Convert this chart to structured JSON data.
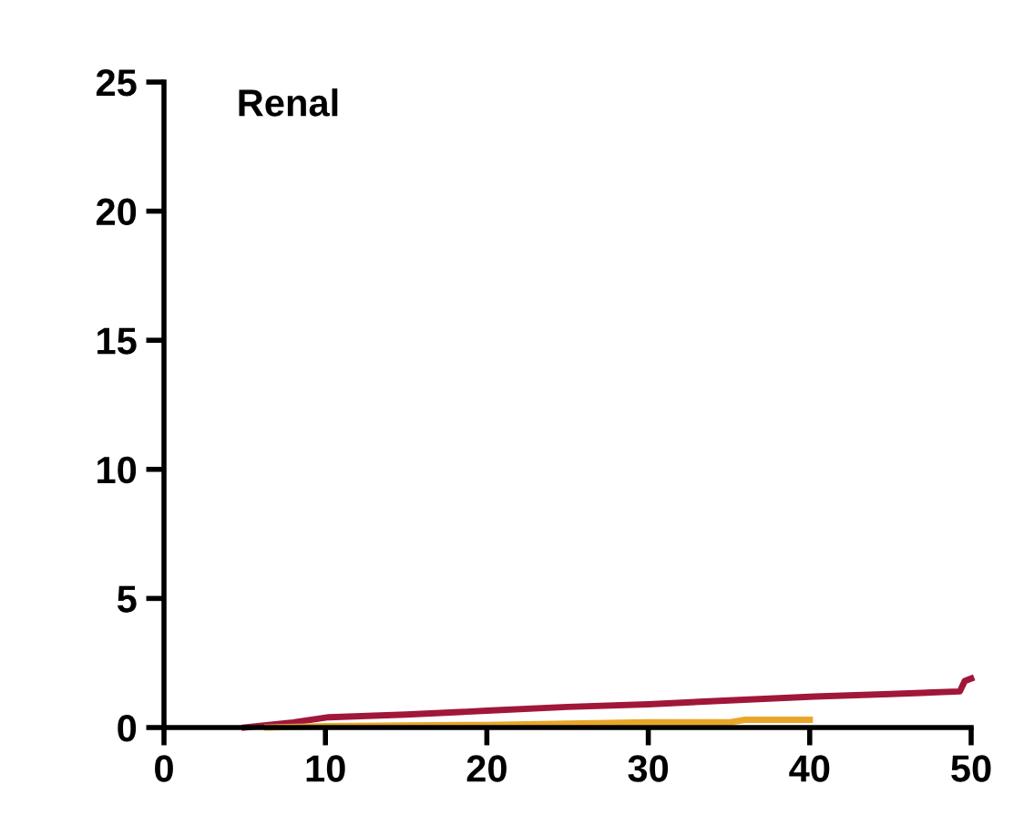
{
  "chart_data": {
    "type": "line",
    "title": "Renal",
    "series": [
      {
        "color": "#a0173a",
        "x": [
          5,
          8,
          10.2,
          15,
          20,
          25,
          30,
          35,
          40.3,
          45,
          49.3,
          49.6,
          50
        ],
        "values": [
          0,
          0.2,
          0.4,
          0.5,
          0.65,
          0.8,
          0.9,
          1.05,
          1.2,
          1.3,
          1.4,
          1.8,
          1.9
        ]
      },
      {
        "color": "#e8a628",
        "x": [
          6.4,
          10,
          15,
          20,
          25,
          30,
          35,
          36,
          40
        ],
        "values": [
          0,
          0.05,
          0.08,
          0.1,
          0.15,
          0.2,
          0.2,
          0.3,
          0.3
        ]
      }
    ],
    "xlim": [
      0,
      50
    ],
    "ylim": [
      0,
      25
    ],
    "xticks": [
      0,
      10,
      20,
      30,
      40,
      50
    ],
    "yticks": [
      0,
      5,
      10,
      15,
      20,
      25
    ],
    "grid": false,
    "legend": false,
    "marker": "none",
    "line_style": "solid"
  }
}
